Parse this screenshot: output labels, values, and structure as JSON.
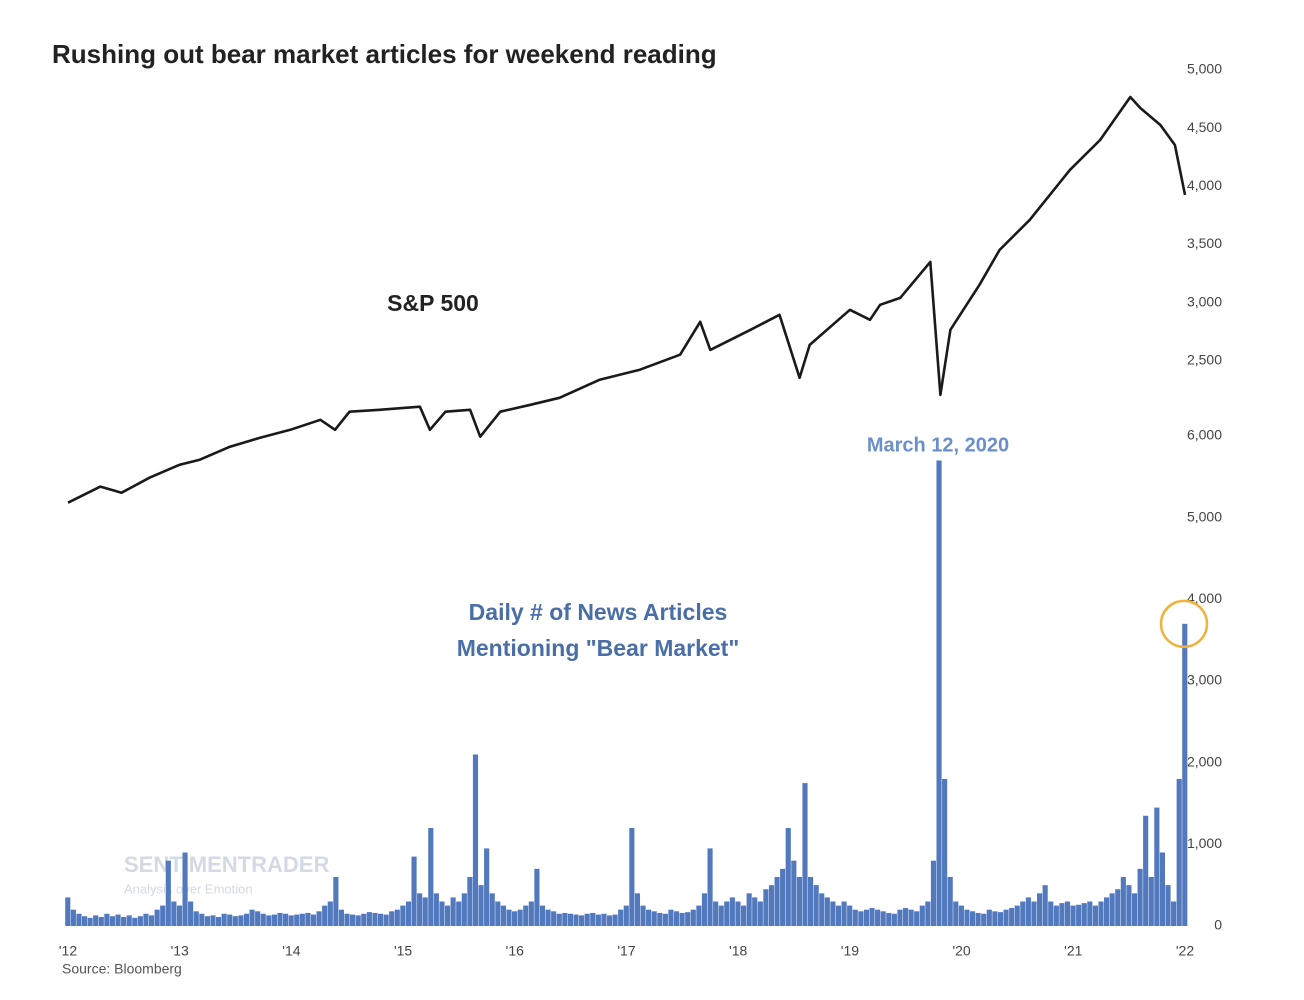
{
  "chart_data": [
    {
      "type": "line",
      "title": "Rushing out bear market articles for weekend reading",
      "annotation": "S&P 500",
      "color": "#1a1a1a",
      "x": [
        2012.0,
        2012.29,
        2012.48,
        2012.73,
        2013.0,
        2013.18,
        2013.45,
        2013.72,
        2013.99,
        2014.26,
        2014.39,
        2014.52,
        2014.79,
        2015.15,
        2015.24,
        2015.38,
        2015.6,
        2015.69,
        2015.87,
        2016.14,
        2016.4,
        2016.76,
        2017.12,
        2017.48,
        2017.66,
        2017.75,
        2018.11,
        2018.37,
        2018.55,
        2018.64,
        2019.0,
        2019.18,
        2019.27,
        2019.45,
        2019.72,
        2019.81,
        2019.9,
        2020.16,
        2020.34,
        2020.61,
        2020.97,
        2021.24,
        2021.51,
        2021.6,
        2021.78,
        2021.91,
        2022.0
      ],
      "values": [
        1280,
        1418,
        1366,
        1495,
        1607,
        1650,
        1761,
        1839,
        1907,
        1993,
        1907,
        2062,
        2079,
        2105,
        1907,
        2062,
        2079,
        1847,
        2062,
        2122,
        2182,
        2337,
        2423,
        2552,
        2835,
        2594,
        2766,
        2895,
        2354,
        2637,
        2938,
        2852,
        2981,
        3041,
        3350,
        2208,
        2766,
        3153,
        3453,
        3711,
        4141,
        4398,
        4768,
        4673,
        4527,
        4355,
        3926
      ],
      "xlim": [
        2012,
        2022
      ],
      "ylim": [
        1200,
        5000
      ],
      "yticks": [
        {
          "value": 2500,
          "label": "2,500"
        },
        {
          "value": 3000,
          "label": "3,000"
        },
        {
          "value": 3500,
          "label": "3,500"
        },
        {
          "value": 4000,
          "label": "4,000"
        },
        {
          "value": 4500,
          "label": "4,500"
        },
        {
          "value": 5000,
          "label": "5,000"
        }
      ]
    },
    {
      "type": "bar",
      "annotation": "March 12, 2020",
      "label_lines": [
        "Daily # of News Articles",
        "Mentioning \"Bear Market\""
      ],
      "source": "Source: Bloomberg",
      "watermark": "SENTIMENTRADER",
      "watermark_tagline": "Analysis over Emotion",
      "color": "#5279bd",
      "x": [
        2012.0,
        2012.05,
        2012.1,
        2012.15,
        2012.2,
        2012.25,
        2012.3,
        2012.35,
        2012.4,
        2012.45,
        2012.5,
        2012.55,
        2012.6,
        2012.65,
        2012.7,
        2012.75,
        2012.8,
        2012.85,
        2012.9,
        2012.95,
        2013.0,
        2013.05,
        2013.1,
        2013.15,
        2013.2,
        2013.25,
        2013.3,
        2013.35,
        2013.4,
        2013.45,
        2013.5,
        2013.55,
        2013.6,
        2013.65,
        2013.7,
        2013.75,
        2013.8,
        2013.85,
        2013.9,
        2013.95,
        2014.0,
        2014.05,
        2014.1,
        2014.15,
        2014.2,
        2014.25,
        2014.3,
        2014.35,
        2014.4,
        2014.45,
        2014.5,
        2014.55,
        2014.6,
        2014.65,
        2014.7,
        2014.75,
        2014.8,
        2014.85,
        2014.9,
        2014.95,
        2015.0,
        2015.05,
        2015.1,
        2015.15,
        2015.2,
        2015.25,
        2015.3,
        2015.35,
        2015.4,
        2015.45,
        2015.5,
        2015.55,
        2015.6,
        2015.65,
        2015.7,
        2015.75,
        2015.8,
        2015.85,
        2015.9,
        2015.95,
        2016.0,
        2016.05,
        2016.1,
        2016.15,
        2016.2,
        2016.25,
        2016.3,
        2016.35,
        2016.4,
        2016.45,
        2016.5,
        2016.55,
        2016.6,
        2016.65,
        2016.7,
        2016.75,
        2016.8,
        2016.85,
        2016.9,
        2016.95,
        2017.0,
        2017.05,
        2017.1,
        2017.15,
        2017.2,
        2017.25,
        2017.3,
        2017.35,
        2017.4,
        2017.45,
        2017.5,
        2017.55,
        2017.6,
        2017.65,
        2017.7,
        2017.75,
        2017.8,
        2017.85,
        2017.9,
        2017.95,
        2018.0,
        2018.05,
        2018.1,
        2018.15,
        2018.2,
        2018.25,
        2018.3,
        2018.35,
        2018.4,
        2018.45,
        2018.5,
        2018.55,
        2018.6,
        2018.65,
        2018.7,
        2018.75,
        2018.8,
        2018.85,
        2018.9,
        2018.95,
        2019.0,
        2019.05,
        2019.1,
        2019.15,
        2019.2,
        2019.25,
        2019.3,
        2019.35,
        2019.4,
        2019.45,
        2019.5,
        2019.55,
        2019.6,
        2019.65,
        2019.7,
        2019.75,
        2019.8,
        2019.85,
        2019.9,
        2019.95,
        2020.0,
        2020.05,
        2020.1,
        2020.15,
        2020.2,
        2020.25,
        2020.3,
        2020.35,
        2020.4,
        2020.45,
        2020.5,
        2020.55,
        2020.6,
        2020.65,
        2020.7,
        2020.75,
        2020.8,
        2020.85,
        2020.9,
        2020.95,
        2021.0,
        2021.05,
        2021.1,
        2021.15,
        2021.2,
        2021.25,
        2021.3,
        2021.35,
        2021.4,
        2021.45,
        2021.5,
        2021.55,
        2021.6,
        2021.65,
        2021.7,
        2021.75,
        2021.8,
        2021.85,
        2021.9,
        2021.95,
        2022.0
      ],
      "values": [
        350,
        200,
        150,
        120,
        100,
        130,
        110,
        150,
        120,
        140,
        110,
        130,
        100,
        120,
        150,
        130,
        200,
        250,
        800,
        300,
        250,
        900,
        300,
        180,
        150,
        120,
        130,
        110,
        150,
        140,
        120,
        130,
        150,
        200,
        180,
        150,
        130,
        140,
        160,
        150,
        130,
        140,
        150,
        160,
        140,
        180,
        250,
        300,
        600,
        200,
        150,
        140,
        130,
        150,
        170,
        160,
        150,
        140,
        180,
        200,
        250,
        300,
        850,
        400,
        350,
        1200,
        400,
        300,
        250,
        350,
        300,
        400,
        600,
        2100,
        500,
        950,
        400,
        300,
        250,
        200,
        180,
        200,
        250,
        300,
        700,
        250,
        200,
        180,
        150,
        160,
        150,
        140,
        130,
        150,
        160,
        140,
        150,
        130,
        140,
        200,
        250,
        1200,
        400,
        250,
        200,
        180,
        160,
        150,
        200,
        180,
        160,
        170,
        200,
        250,
        400,
        950,
        300,
        250,
        300,
        350,
        300,
        250,
        400,
        350,
        300,
        450,
        500,
        600,
        700,
        1200,
        800,
        600,
        1750,
        600,
        500,
        400,
        350,
        300,
        250,
        300,
        250,
        200,
        180,
        200,
        220,
        200,
        180,
        160,
        150,
        200,
        220,
        200,
        180,
        250,
        300,
        800,
        5700,
        1800,
        600,
        300,
        250,
        200,
        180,
        160,
        150,
        200,
        180,
        170,
        200,
        220,
        250,
        300,
        350,
        300,
        400,
        500,
        300,
        250,
        280,
        300,
        250,
        260,
        280,
        300,
        250,
        300,
        350,
        400,
        450,
        600,
        500,
        400,
        700,
        1350,
        600,
        1450,
        900,
        500,
        300,
        1800,
        3700
      ],
      "xlim": [
        2012,
        2022
      ],
      "ylim": [
        0,
        6000
      ],
      "yticks": [
        0,
        {
          "value": 1000,
          "label": "1,000"
        },
        {
          "value": 2000,
          "label": "2,000"
        },
        {
          "value": 3000,
          "label": "3,000"
        },
        {
          "value": 4000,
          "label": "4,000"
        },
        {
          "value": 5000,
          "label": "5,000"
        },
        {
          "value": 6000,
          "label": "6,000"
        }
      ],
      "xticks": [
        {
          "value": 2012,
          "label": "'12"
        },
        {
          "value": 2013,
          "label": "'13"
        },
        {
          "value": 2014,
          "label": "'14"
        },
        {
          "value": 2015,
          "label": "'15"
        },
        {
          "value": 2016,
          "label": "'16"
        },
        {
          "value": 2017,
          "label": "'17"
        },
        {
          "value": 2018,
          "label": "'18"
        },
        {
          "value": 2019,
          "label": "'19"
        },
        {
          "value": 2020,
          "label": "'20"
        },
        {
          "value": 2021,
          "label": "'21"
        },
        {
          "value": 2022,
          "label": "'22"
        }
      ]
    }
  ]
}
